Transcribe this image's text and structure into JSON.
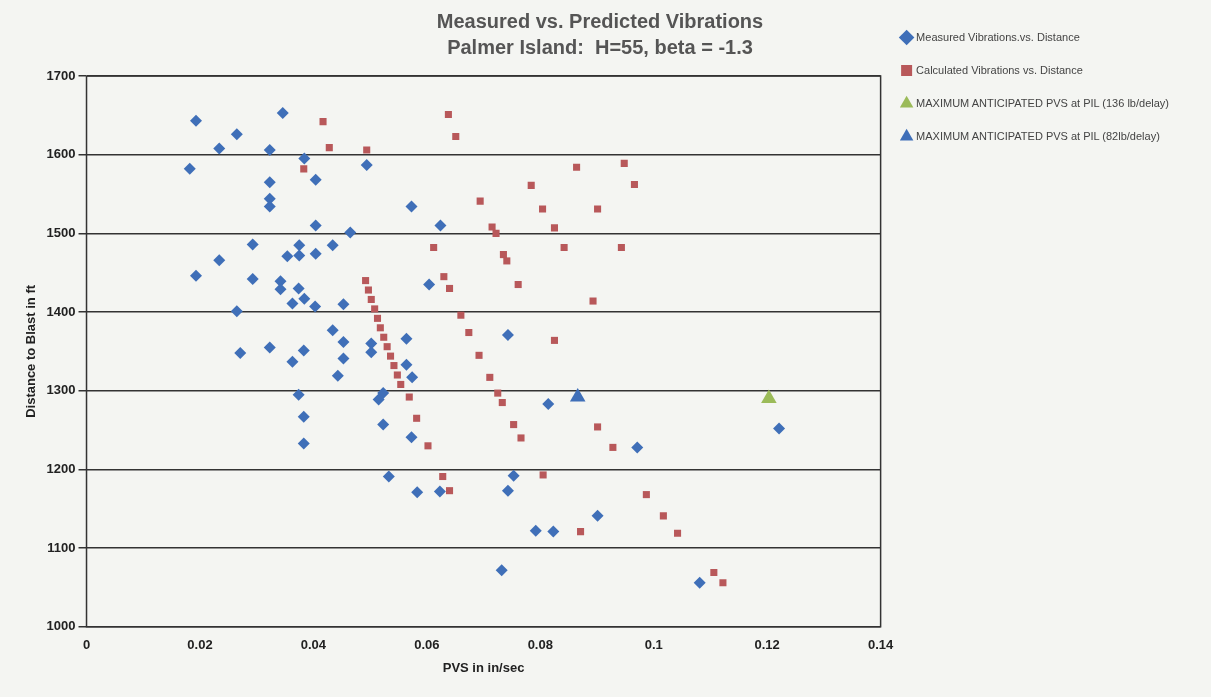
{
  "chart_data": {
    "type": "scatter",
    "title": "Measured vs. Predicted Vibrations",
    "subtitle": "Palmer Island:  H=55, beta = -1.3",
    "xlabel": "PVS in in/sec",
    "ylabel": "Distance to Blast in ft",
    "xlim": [
      0,
      0.14
    ],
    "xticks": [
      0,
      0.02,
      0.04,
      0.06,
      0.08,
      0.1,
      0.12,
      0.14
    ],
    "ylim": [
      1000,
      1700
    ],
    "yticks": [
      1000,
      1100,
      1200,
      1300,
      1400,
      1500,
      1600,
      1700
    ],
    "grid": "y",
    "legend": "right",
    "series": [
      {
        "name": "Measured Vibrations.vs. Distance",
        "color": "#3f6fb8",
        "marker": "diamond",
        "x": [
          0.0193,
          0.0346,
          0.0265,
          0.0234,
          0.0323,
          0.0182,
          0.0384,
          0.0404,
          0.0323,
          0.0323,
          0.0323,
          0.0404,
          0.0465,
          0.0293,
          0.0375,
          0.0375,
          0.0354,
          0.0404,
          0.0434,
          0.0234,
          0.0193,
          0.0293,
          0.0342,
          0.0342,
          0.0374,
          0.0384,
          0.0363,
          0.0403,
          0.0453,
          0.0265,
          0.0434,
          0.0453,
          0.0323,
          0.0271,
          0.0383,
          0.0363,
          0.0453,
          0.0443,
          0.0374,
          0.0383,
          0.0383,
          0.0494,
          0.0573,
          0.0624,
          0.0604,
          0.0743,
          0.0502,
          0.0502,
          0.0564,
          0.0564,
          0.0574,
          0.0523,
          0.0515,
          0.0523,
          0.0573,
          0.0814,
          0.0971,
          0.0533,
          0.0583,
          0.0623,
          0.0753,
          0.0743,
          0.0901,
          0.0792,
          0.0823,
          0.0732,
          0.1221,
          0.1081
        ],
        "values": [
          1643,
          1653,
          1626,
          1608,
          1606,
          1582,
          1595,
          1568,
          1565,
          1544,
          1534,
          1510,
          1501,
          1486,
          1485,
          1472,
          1471,
          1474,
          1485,
          1466,
          1446,
          1442,
          1439,
          1429,
          1430,
          1417,
          1411,
          1407,
          1410,
          1401,
          1377,
          1362,
          1355,
          1348,
          1351,
          1337,
          1341,
          1319,
          1295,
          1267,
          1233,
          1587,
          1534,
          1510,
          1435,
          1371,
          1360,
          1349,
          1366,
          1333,
          1317,
          1297,
          1289,
          1257,
          1241,
          1283,
          1228,
          1191,
          1171,
          1172,
          1192,
          1173,
          1141,
          1122,
          1121,
          1072,
          1252,
          1056
        ]
      },
      {
        "name": "Calculated Vibrations vs. Distance",
        "color": "#b8585a",
        "marker": "square",
        "x": [
          0.0417,
          0.0428,
          0.0383,
          0.0494,
          0.0638,
          0.0651,
          0.0864,
          0.0948,
          0.0966,
          0.0784,
          0.0694,
          0.0804,
          0.0901,
          0.0715,
          0.0722,
          0.0825,
          0.0842,
          0.0943,
          0.0612,
          0.0735,
          0.0741,
          0.0761,
          0.063,
          0.064,
          0.0893,
          0.066,
          0.0674,
          0.0825,
          0.0692,
          0.0711,
          0.0725,
          0.0733,
          0.0753,
          0.0766,
          0.0901,
          0.0928,
          0.0805,
          0.0628,
          0.064,
          0.0602,
          0.0582,
          0.0569,
          0.0871,
          0.0492,
          0.0497,
          0.0502,
          0.0508,
          0.0513,
          0.0518,
          0.0524,
          0.053,
          0.0536,
          0.0542,
          0.0548,
          0.0554,
          0.0987,
          0.1017,
          0.1042,
          0.1106,
          0.1122
        ],
        "values": [
          1642,
          1609,
          1582,
          1606,
          1651,
          1623,
          1584,
          1589,
          1562,
          1561,
          1541,
          1531,
          1531,
          1508,
          1500,
          1507,
          1482,
          1482,
          1482,
          1473,
          1465,
          1435,
          1445,
          1430,
          1414,
          1396,
          1374,
          1364,
          1345,
          1317,
          1297,
          1285,
          1257,
          1240,
          1254,
          1228,
          1193,
          1191,
          1173,
          1230,
          1265,
          1292,
          1121,
          1440,
          1428,
          1416,
          1404,
          1392,
          1380,
          1368,
          1356,
          1344,
          1332,
          1320,
          1308,
          1168,
          1141,
          1119,
          1069,
          1056
        ]
      },
      {
        "name": "MAXIMUM ANTICIPATED PVS at PIL (136 lb/delay)",
        "color": "#9bbb59",
        "marker": "triangle",
        "x": [
          0.1203
        ],
        "values": [
          1290
        ]
      },
      {
        "name": "MAXIMUM ANTICIPATED PVS at PIL (82lb/delay)",
        "color": "#3f6fb8",
        "marker": "triangle",
        "x": [
          0.0866
        ],
        "values": [
          1292
        ]
      }
    ]
  }
}
